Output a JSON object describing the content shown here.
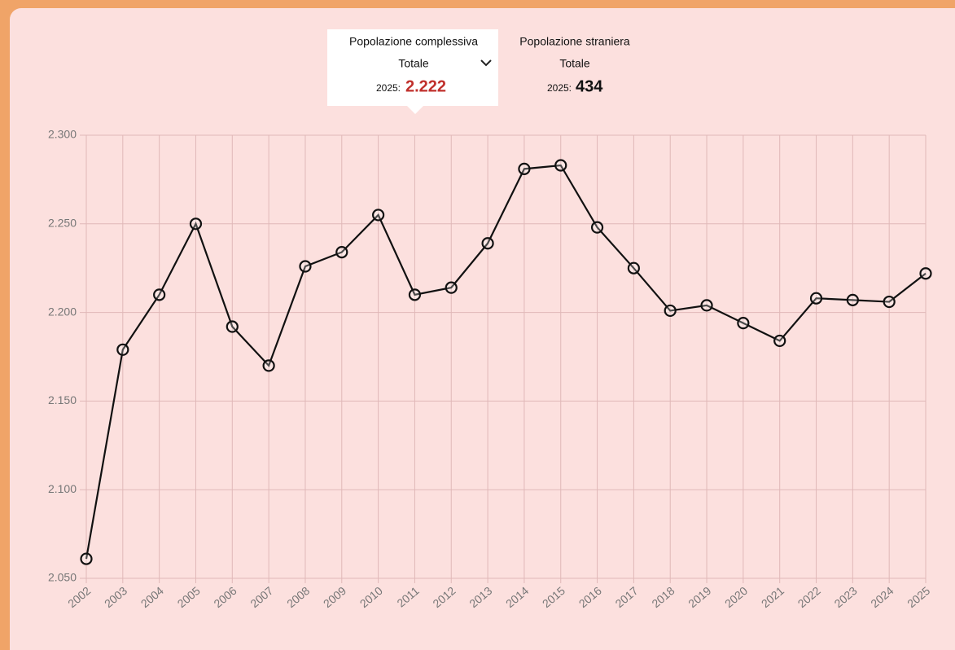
{
  "panels": [
    {
      "title": "Popolazione complessiva",
      "selector": "Totale",
      "year_label": "2025:",
      "value": "2.222"
    },
    {
      "title": "Popolazione straniera",
      "selector": "Totale",
      "year_label": "2025:",
      "value": "434"
    }
  ],
  "chart_data": {
    "type": "line",
    "categories": [
      "2002",
      "2003",
      "2004",
      "2005",
      "2006",
      "2007",
      "2008",
      "2009",
      "2010",
      "2011",
      "2012",
      "2013",
      "2014",
      "2015",
      "2016",
      "2017",
      "2018",
      "2019",
      "2020",
      "2021",
      "2022",
      "2023",
      "2024",
      "2025"
    ],
    "series": [
      {
        "name": "Popolazione complessiva",
        "color": "#111111",
        "values": [
          2061,
          2179,
          2210,
          2250,
          2192,
          2170,
          2226,
          2234,
          2255,
          2210,
          2214,
          2239,
          2281,
          2283,
          2248,
          2225,
          2201,
          2204,
          2194,
          2184,
          2208,
          2207,
          2206,
          2222
        ]
      }
    ],
    "ylim": [
      2050,
      2300
    ],
    "yticks": [
      {
        "value": 2050,
        "label": "2.050"
      },
      {
        "value": 2100,
        "label": "2.100"
      },
      {
        "value": 2150,
        "label": "2.150"
      },
      {
        "value": 2200,
        "label": "2.200"
      },
      {
        "value": 2250,
        "label": "2.250"
      },
      {
        "value": 2300,
        "label": "2.300"
      }
    ],
    "grid": true
  }
}
